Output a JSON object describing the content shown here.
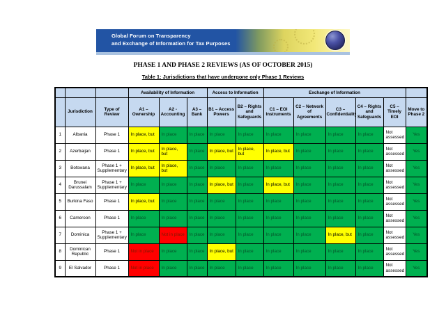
{
  "banner": {
    "line1": "Global Forum on Transparency",
    "line2": "and Exchange of Information for Tax Purposes",
    "brand_blue": "#2254a4",
    "brand_yellow": "#f2e878"
  },
  "page": {
    "title": "PHASE 1 AND PHASE 2 REVIEWS (AS OF OCTOBER 2015)",
    "subtitle": "Table 1: Jurisdictions that have undergone only Phase 1 Reviews"
  },
  "table": {
    "group_headers": [
      {
        "label": "",
        "span": 1
      },
      {
        "label": "",
        "span": 1
      },
      {
        "label": "",
        "span": 1
      },
      {
        "label": "Availability of Information",
        "span": 3
      },
      {
        "label": "Access to Information",
        "span": 2
      },
      {
        "label": "Exchange of Information",
        "span": 5
      },
      {
        "label": "",
        "span": 1
      }
    ],
    "columns": [
      "",
      "Jurisdiction",
      "Type of Review",
      "A1 – Ownership",
      "A2 - Accounting",
      "A3 – Bank",
      "B1 – Access Powers",
      "B2 – Rights and Safeguards",
      "C1 – EOI Instruments",
      "C2 – Network of Agreements",
      "C3 – Confidentiality",
      "C4 – Rights and Safeguards",
      "C5 – Timely EOI",
      "Move to Phase 2"
    ],
    "header_bg": "#c6d9f0",
    "status_labels": {
      "ip": "In place",
      "ipb": "In place, but",
      "nip": "Not in place",
      "na": "Not assessed"
    },
    "status_styles": {
      "ip": {
        "bg": "#00b050",
        "fg": "#055229"
      },
      "ipb": {
        "bg": "#ffff00",
        "fg": "#000000"
      },
      "nip": {
        "bg": "#ff0000",
        "fg": "#7a1a00"
      },
      "na": {
        "bg": "#ffffff",
        "fg": "#000000"
      }
    },
    "move_style": {
      "bg": "#00b050",
      "fg": "#055229"
    },
    "rows": [
      {
        "num": "1",
        "jurisdiction": "Albania",
        "type": "Phase 1",
        "statuses": [
          "ipb",
          "ip",
          "ip",
          "ip",
          "ip",
          "ip",
          "ip",
          "ip",
          "ip",
          "na"
        ],
        "move": "Yes"
      },
      {
        "num": "2",
        "jurisdiction": "Azerbaijan",
        "type": "Phase 1",
        "statuses": [
          "ipb",
          "ipb",
          "ip",
          "ipb",
          "ipb",
          "ipb",
          "ip",
          "ip",
          "ip",
          "na"
        ],
        "move": "Yes"
      },
      {
        "num": "3",
        "jurisdiction": "Botswana",
        "type": "Phase 1 + Supplementary",
        "statuses": [
          "ipb",
          "ipb",
          "ip",
          "ip",
          "ip",
          "ip",
          "ip",
          "ip",
          "ip",
          "na"
        ],
        "move": "Yes"
      },
      {
        "num": "4",
        "jurisdiction": "Brunei Darussalam",
        "type": "Phase 1 + Supplementary",
        "statuses": [
          "ip",
          "ip",
          "ip",
          "ipb",
          "ip",
          "ipb",
          "ip",
          "ip",
          "ip",
          "na"
        ],
        "move": "Yes"
      },
      {
        "num": "5",
        "jurisdiction": "Burkina Faso",
        "type": "Phase 1",
        "statuses": [
          "ipb",
          "ip",
          "ip",
          "ip",
          "ip",
          "ip",
          "ip",
          "ip",
          "ip",
          "na"
        ],
        "move": "Yes"
      },
      {
        "num": "6",
        "jurisdiction": "Cameroon",
        "type": "Phase 1",
        "statuses": [
          "ip",
          "ip",
          "ip",
          "ip",
          "ip",
          "ip",
          "ip",
          "ip",
          "ip",
          "na"
        ],
        "move": "Yes"
      },
      {
        "num": "7",
        "jurisdiction": "Dominica",
        "type": "Phase 1 + Supplementary",
        "statuses": [
          "ip",
          "nip",
          "ip",
          "ip",
          "ip",
          "ip",
          "ip",
          "ipb",
          "ip",
          "na"
        ],
        "move": "Yes"
      },
      {
        "num": "8",
        "jurisdiction": "Dominican Republic",
        "type": "Phase 1",
        "statuses": [
          "nip",
          "ip",
          "ip",
          "ipb",
          "ip",
          "ip",
          "ip",
          "ip",
          "ip",
          "na"
        ],
        "move": "Yes"
      },
      {
        "num": "9",
        "jurisdiction": "El Salvador",
        "type": "Phase 1",
        "statuses": [
          "nip",
          "ip",
          "ip",
          "ip",
          "ip",
          "ip",
          "ip",
          "ip",
          "ip",
          "na"
        ],
        "move": "Yes"
      }
    ]
  }
}
